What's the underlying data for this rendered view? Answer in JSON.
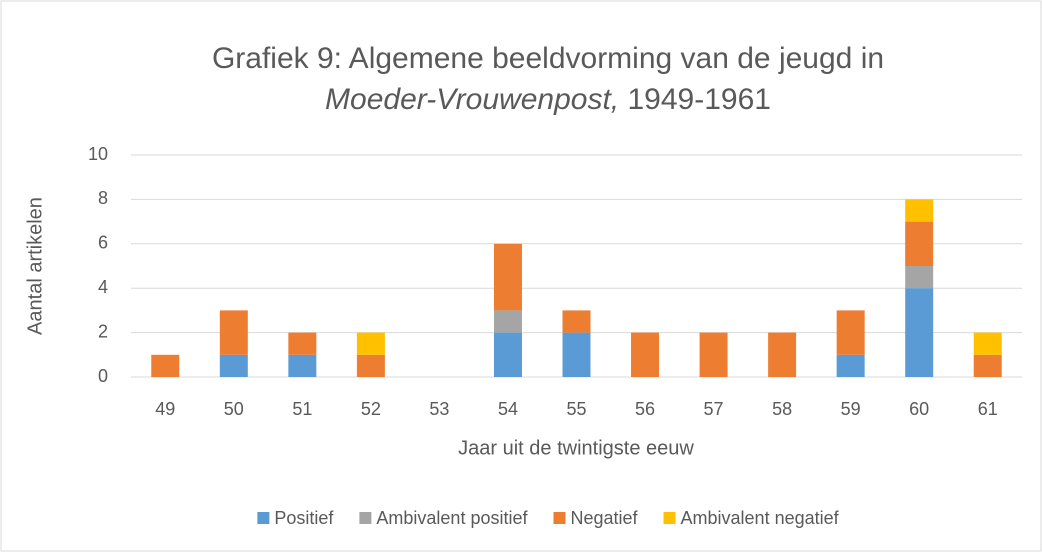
{
  "chart_data": {
    "type": "stacked_bar",
    "title": "Grafiek 9: Algemene beeldvorming van de jeugd in",
    "title_italic": "Moeder-Vrouwenpost,",
    "title_end": "1949-1961",
    "x_label": "Jaar uit de twintigste eeuw",
    "y_label": "Aantal artikelen",
    "categories": [
      "49",
      "50",
      "51",
      "52",
      "53",
      "54",
      "55",
      "56",
      "57",
      "58",
      "59",
      "60",
      "61"
    ],
    "series": [
      {
        "name": "Positief",
        "color": "#5b9bd5",
        "values": [
          0,
          1,
          1,
          0,
          0,
          2,
          2,
          0,
          0,
          0,
          1,
          4,
          0
        ]
      },
      {
        "name": "Ambivalent positief",
        "color": "#a5a5a5",
        "values": [
          0,
          0,
          0,
          0,
          0,
          1,
          0,
          0,
          0,
          0,
          0,
          1,
          0
        ]
      },
      {
        "name": "Negatief",
        "color": "#ed7d31",
        "values": [
          1,
          2,
          1,
          1,
          0,
          3,
          1,
          2,
          2,
          2,
          2,
          2,
          1
        ]
      },
      {
        "name": "Ambivalent negatief",
        "color": "#ffc000",
        "values": [
          0,
          0,
          0,
          1,
          0,
          0,
          0,
          0,
          0,
          0,
          0,
          1,
          1
        ]
      }
    ],
    "ylim": [
      0,
      10
    ],
    "yticks": [
      0,
      2,
      4,
      6,
      8,
      10
    ],
    "grid": true,
    "legend": "bottom"
  }
}
